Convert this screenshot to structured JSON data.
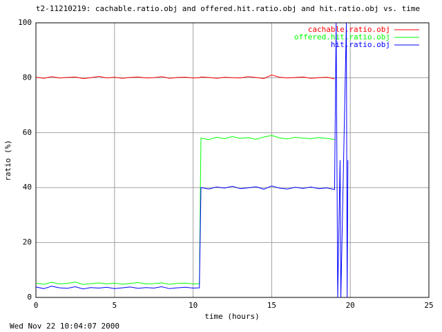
{
  "chart_data": {
    "type": "line",
    "title": "t2-11210219: cachable.ratio.obj and offered.hit.ratio.obj and hit.ratio.obj vs. time",
    "xlabel": "time (hours)",
    "ylabel": "ratio (%)",
    "timestamp": "Wed Nov 22 10:04:07 2000",
    "xlim": [
      0,
      25
    ],
    "ylim": [
      0,
      100
    ],
    "xticks": [
      0,
      5,
      10,
      15,
      20,
      25
    ],
    "yticks": [
      0,
      20,
      40,
      60,
      80,
      100
    ],
    "grid": true,
    "legend": "top-right",
    "x": [
      0,
      0.5,
      1,
      1.5,
      2,
      2.5,
      3,
      3.5,
      4,
      4.5,
      5,
      5.5,
      6,
      6.5,
      7,
      7.5,
      8,
      8.5,
      9,
      9.5,
      10,
      10.4,
      10.5,
      11,
      11.5,
      12,
      12.5,
      13,
      13.5,
      14,
      14.5,
      15,
      15.5,
      16,
      16.5,
      17,
      17.5,
      18,
      18.5,
      19,
      19.1,
      19.2,
      19.35,
      19.4,
      19.75,
      19.8,
      19.85
    ],
    "series": [
      {
        "name": "cachable.ratio.obj",
        "color": "#ff0000",
        "values": [
          80.2,
          79.8,
          80.4,
          79.9,
          80.1,
          80.3,
          79.7,
          80.0,
          80.5,
          79.9,
          80.2,
          79.8,
          80.1,
          80.3,
          79.9,
          80.0,
          80.4,
          79.8,
          80.1,
          80.2,
          79.9,
          80.0,
          80.3,
          80.1,
          79.8,
          80.2,
          80.0,
          79.9,
          80.4,
          80.1,
          79.7,
          81.0,
          80.2,
          79.9,
          80.1,
          80.3,
          79.8,
          80.0,
          80.2,
          79.6,
          null,
          null,
          null,
          null,
          null,
          null,
          null
        ]
      },
      {
        "name": "offered.hit.ratio.obj",
        "color": "#00ff00",
        "values": [
          5.2,
          4.8,
          5.5,
          4.9,
          5.1,
          5.6,
          4.7,
          5.0,
          5.3,
          4.9,
          5.2,
          4.8,
          5.1,
          5.4,
          4.9,
          5.0,
          5.3,
          4.8,
          5.1,
          5.2,
          4.9,
          5.0,
          58.0,
          57.5,
          58.3,
          57.8,
          58.6,
          57.9,
          58.2,
          57.6,
          58.4,
          59.0,
          58.1,
          57.7,
          58.3,
          58.0,
          57.8,
          58.2,
          57.9,
          57.5,
          null,
          null,
          null,
          null,
          null,
          null,
          null
        ]
      },
      {
        "name": "hit.ratio.obj",
        "color": "#0000ff",
        "values": [
          3.8,
          3.2,
          4.1,
          3.5,
          3.3,
          3.9,
          3.1,
          3.6,
          3.4,
          3.7,
          3.2,
          3.5,
          3.8,
          3.3,
          3.6,
          3.4,
          3.9,
          3.2,
          3.5,
          3.7,
          3.4,
          3.5,
          40.0,
          39.5,
          40.2,
          39.8,
          40.5,
          39.6,
          39.9,
          40.3,
          39.4,
          40.6,
          39.8,
          39.5,
          40.1,
          39.7,
          40.2,
          39.6,
          39.9,
          39.3,
          100,
          0,
          50,
          0,
          100,
          0,
          50
        ]
      }
    ]
  }
}
